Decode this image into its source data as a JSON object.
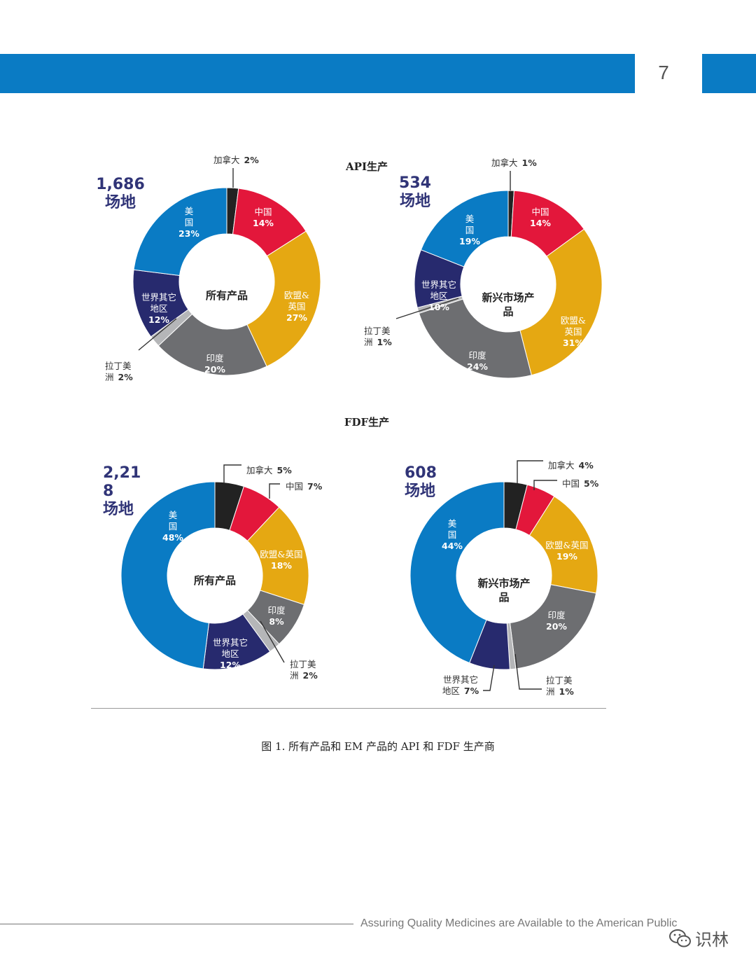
{
  "page": {
    "number": "7",
    "section_titles": [
      "API生产",
      "FDF生产"
    ],
    "caption": "图 1. 所有产品和 EM 产品的 API 和 FDF 生产商",
    "footer": "Assuring Quality Medicines are Available to the American Public",
    "watermark": "识林"
  },
  "colors": {
    "band": "#0a7bc4",
    "canada": "#222222",
    "china": "#e3173b",
    "eu_uk": "#e5a812",
    "india": "#6d6e71",
    "latin_america": "#b5b6b8",
    "row": "#272a6e",
    "usa": "#0a7bc4",
    "site_count": "#303477"
  },
  "chart_data": [
    {
      "type": "pie",
      "donut": true,
      "group": "API生产",
      "center_label": [
        "所有产品"
      ],
      "site_count": [
        "1,686",
        "场地"
      ],
      "slices": [
        {
          "key": "canada",
          "label": [
            "加拿大"
          ],
          "value": 2,
          "value_text": "2%"
        },
        {
          "key": "china",
          "label": [
            "中国"
          ],
          "value": 14,
          "value_text": "14%"
        },
        {
          "key": "eu_uk",
          "label": [
            "欧盟&",
            "英国"
          ],
          "value": 27,
          "value_text": "27%"
        },
        {
          "key": "india",
          "label": [
            "印度"
          ],
          "value": 20,
          "value_text": "20%"
        },
        {
          "key": "latin_america",
          "label": [
            "拉丁美",
            "洲"
          ],
          "value": 2,
          "value_text": "2%"
        },
        {
          "key": "row",
          "label": [
            "世界其它",
            "地区"
          ],
          "value": 12,
          "value_text": "12%"
        },
        {
          "key": "usa",
          "label": [
            "美",
            "国"
          ],
          "value": 23,
          "value_text": "23%"
        }
      ]
    },
    {
      "type": "pie",
      "donut": true,
      "group": "API生产",
      "center_label": [
        "新兴市场产",
        "品"
      ],
      "site_count": [
        "534",
        "场地"
      ],
      "slices": [
        {
          "key": "canada",
          "label": [
            "加拿大"
          ],
          "value": 1,
          "value_text": "1%"
        },
        {
          "key": "china",
          "label": [
            "中国"
          ],
          "value": 14,
          "value_text": "14%"
        },
        {
          "key": "eu_uk",
          "label": [
            "欧盟&",
            "英国"
          ],
          "value": 31,
          "value_text": "31%"
        },
        {
          "key": "india",
          "label": [
            "印度"
          ],
          "value": 24,
          "value_text": "24%"
        },
        {
          "key": "latin_america",
          "label": [
            "拉丁美",
            "洲"
          ],
          "value": 1,
          "value_text": "1%"
        },
        {
          "key": "row",
          "label": [
            "世界其它",
            "地区"
          ],
          "value": 10,
          "value_text": "10%"
        },
        {
          "key": "usa",
          "label": [
            "美",
            "国"
          ],
          "value": 19,
          "value_text": "19%"
        }
      ]
    },
    {
      "type": "pie",
      "donut": true,
      "group": "FDF生产",
      "center_label": [
        "所有产品"
      ],
      "site_count": [
        "2,21",
        "8",
        "场地"
      ],
      "slices": [
        {
          "key": "canada",
          "label": [
            "加拿大"
          ],
          "value": 5,
          "value_text": "5%"
        },
        {
          "key": "china",
          "label": [
            "中国"
          ],
          "value": 7,
          "value_text": "7%"
        },
        {
          "key": "eu_uk",
          "label": [
            "欧盟&英国"
          ],
          "value": 18,
          "value_text": "18%"
        },
        {
          "key": "india",
          "label": [
            "印度"
          ],
          "value": 8,
          "value_text": "8%"
        },
        {
          "key": "latin_america",
          "label": [
            "拉丁美",
            "洲"
          ],
          "value": 2,
          "value_text": "2%"
        },
        {
          "key": "row",
          "label": [
            "世界其它",
            "地区"
          ],
          "value": 12,
          "value_text": "12%"
        },
        {
          "key": "usa",
          "label": [
            "美",
            "国"
          ],
          "value": 48,
          "value_text": "48%"
        }
      ]
    },
    {
      "type": "pie",
      "donut": true,
      "group": "FDF生产",
      "center_label": [
        "新兴市场产",
        "品"
      ],
      "site_count": [
        "608",
        "场地"
      ],
      "slices": [
        {
          "key": "canada",
          "label": [
            "加拿大"
          ],
          "value": 4,
          "value_text": "4%"
        },
        {
          "key": "china",
          "label": [
            "中国"
          ],
          "value": 5,
          "value_text": "5%"
        },
        {
          "key": "eu_uk",
          "label": [
            "欧盟&英国"
          ],
          "value": 19,
          "value_text": "19%"
        },
        {
          "key": "india",
          "label": [
            "印度"
          ],
          "value": 20,
          "value_text": "20%"
        },
        {
          "key": "latin_america",
          "label": [
            "拉丁美",
            "洲"
          ],
          "value": 1,
          "value_text": "1%"
        },
        {
          "key": "row",
          "label": [
            "世界其它",
            "地区"
          ],
          "value": 7,
          "value_text": "7%"
        },
        {
          "key": "usa",
          "label": [
            "美",
            "国"
          ],
          "value": 44,
          "value_text": "44%"
        }
      ]
    }
  ]
}
